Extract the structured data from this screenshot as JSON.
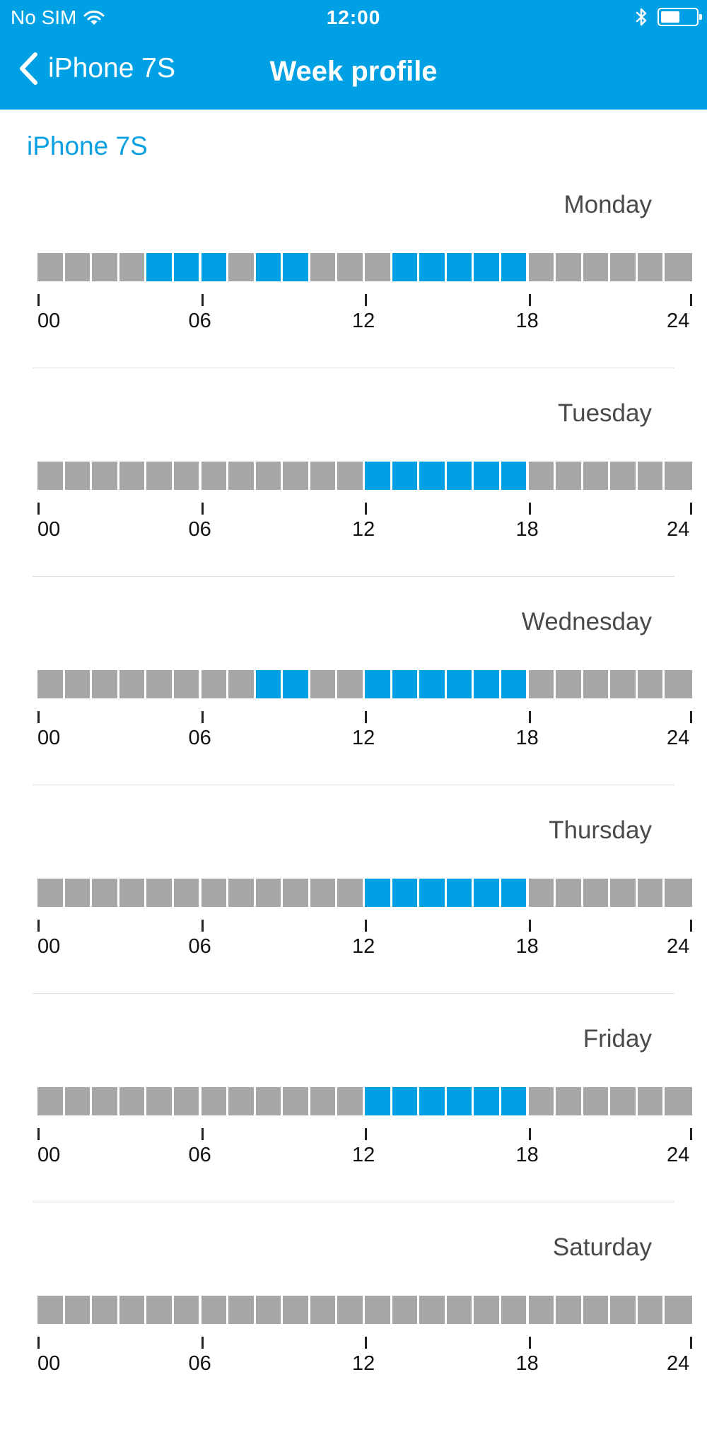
{
  "status_bar": {
    "carrier": "No SIM",
    "time": "12:00",
    "battery_level": 0.55,
    "icons": [
      "wifi-icon",
      "bluetooth-icon",
      "battery-icon"
    ]
  },
  "nav": {
    "back_label": "iPhone 7S",
    "title": "Week profile"
  },
  "device_name": "iPhone 7S",
  "colors": {
    "accent": "#00a0e4",
    "slot_off": "#a6a6a6",
    "slot_on": "#00a0e4"
  },
  "time_axis": [
    "00",
    "06",
    "12",
    "18",
    "24"
  ],
  "days": [
    {
      "name": "Monday",
      "active_hours": [
        4,
        5,
        6,
        8,
        9,
        13,
        14,
        15,
        16,
        17
      ]
    },
    {
      "name": "Tuesday",
      "active_hours": [
        12,
        13,
        14,
        15,
        16,
        17
      ]
    },
    {
      "name": "Wednesday",
      "active_hours": [
        8,
        9,
        12,
        13,
        14,
        15,
        16,
        17
      ]
    },
    {
      "name": "Thursday",
      "active_hours": [
        12,
        13,
        14,
        15,
        16,
        17
      ]
    },
    {
      "name": "Friday",
      "active_hours": [
        12,
        13,
        14,
        15,
        16,
        17
      ]
    },
    {
      "name": "Saturday",
      "active_hours": []
    }
  ]
}
